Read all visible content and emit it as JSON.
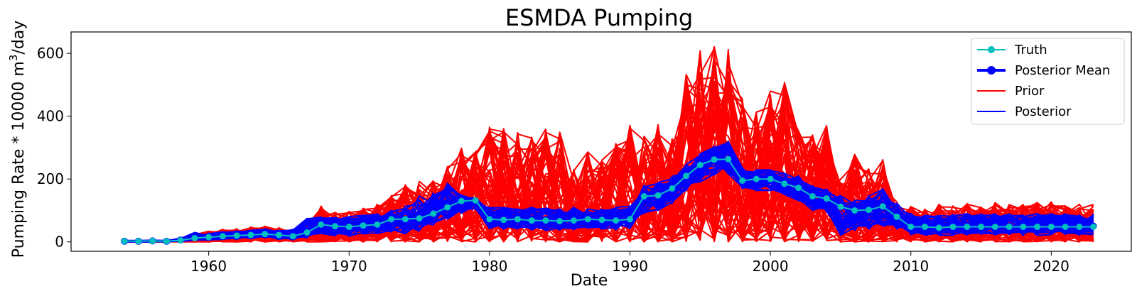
{
  "chart_data": {
    "type": "line",
    "title": "ESMDA Pumping",
    "xlabel": "Date",
    "ylabel_main": "Pumping Rate * 10000 m",
    "ylabel_sup": "3",
    "ylabel_tail": "/day",
    "xlim": [
      1950.2,
      2025.7
    ],
    "ylim": [
      -30,
      668
    ],
    "x_ticks": [
      1960,
      1970,
      1980,
      1990,
      2000,
      2010,
      2020
    ],
    "y_ticks": [
      0,
      200,
      400,
      600
    ],
    "legend_position": "top-right",
    "grid": false,
    "colors": {
      "truth": "#00bfbf",
      "posterior_mean": "#0000ff",
      "prior": "#ff0000",
      "posterior": "#0000ff"
    },
    "legend": [
      "Truth",
      "Posterior Mean",
      "Prior",
      "Posterior"
    ],
    "x": [
      1954,
      1955,
      1956,
      1957,
      1958,
      1959,
      1960,
      1961,
      1962,
      1963,
      1964,
      1965,
      1966,
      1967,
      1968,
      1969,
      1970,
      1971,
      1972,
      1973,
      1974,
      1975,
      1976,
      1977,
      1978,
      1979,
      1980,
      1981,
      1982,
      1983,
      1984,
      1985,
      1986,
      1987,
      1988,
      1989,
      1990,
      1991,
      1992,
      1993,
      1994,
      1995,
      1996,
      1997,
      1998,
      1999,
      2000,
      2001,
      2002,
      2003,
      2004,
      2005,
      2006,
      2007,
      2008,
      2009,
      2010,
      2011,
      2012,
      2013,
      2014,
      2015,
      2016,
      2017,
      2018,
      2019,
      2020,
      2021,
      2022,
      2023
    ],
    "series": [
      {
        "name": "Truth",
        "values": [
          2,
          2,
          3,
          2,
          5,
          12,
          15,
          18,
          20,
          22,
          25,
          22,
          18,
          30,
          55,
          50,
          48,
          52,
          55,
          72,
          72,
          75,
          90,
          110,
          130,
          132,
          72,
          70,
          72,
          68,
          68,
          66,
          68,
          72,
          70,
          68,
          72,
          145,
          148,
          170,
          210,
          245,
          262,
          263,
          195,
          200,
          200,
          185,
          172,
          145,
          138,
          112,
          100,
          102,
          113,
          80,
          48,
          48,
          45,
          48,
          48,
          48,
          48,
          48,
          48,
          48,
          48,
          48,
          48,
          48
        ]
      },
      {
        "name": "Posterior Mean",
        "values": [
          2,
          2,
          3,
          2,
          6,
          14,
          17,
          20,
          22,
          24,
          27,
          24,
          20,
          33,
          58,
          52,
          50,
          55,
          58,
          70,
          72,
          80,
          100,
          118,
          132,
          130,
          80,
          70,
          72,
          68,
          70,
          66,
          68,
          70,
          70,
          68,
          72,
          135,
          150,
          170,
          205,
          240,
          258,
          260,
          210,
          205,
          205,
          192,
          178,
          150,
          138,
          115,
          100,
          105,
          112,
          82,
          52,
          50,
          48,
          50,
          50,
          50,
          50,
          50,
          50,
          50,
          50,
          50,
          50,
          50
        ]
      }
    ],
    "prior_band": {
      "name": "Prior",
      "low": [
        0,
        0,
        0,
        0,
        0,
        0,
        0,
        0,
        0,
        0,
        0,
        0,
        0,
        0,
        0,
        0,
        0,
        0,
        0,
        0,
        0,
        0,
        0,
        0,
        0,
        0,
        0,
        0,
        0,
        0,
        0,
        0,
        0,
        0,
        0,
        0,
        0,
        0,
        0,
        0,
        0,
        0,
        0,
        0,
        0,
        0,
        0,
        0,
        0,
        0,
        0,
        0,
        0,
        0,
        0,
        0,
        0,
        0,
        0,
        0,
        0,
        0,
        0,
        0,
        0,
        0,
        0,
        0,
        0,
        0
      ],
      "high": [
        2,
        3,
        4,
        4,
        10,
        25,
        35,
        40,
        45,
        48,
        50,
        45,
        35,
        70,
        115,
        95,
        98,
        110,
        120,
        150,
        185,
        195,
        195,
        240,
        300,
        290,
        375,
        380,
        360,
        335,
        360,
        360,
        230,
        300,
        270,
        320,
        385,
        345,
        380,
        330,
        550,
        610,
        640,
        615,
        455,
        420,
        480,
        510,
        355,
        340,
        375,
        200,
        300,
        240,
        270,
        130,
        115,
        110,
        120,
        115,
        125,
        115,
        125,
        120,
        120,
        125,
        130,
        115,
        120,
        125
      ]
    },
    "posterior_band": {
      "name": "Posterior",
      "low": [
        0,
        0,
        0,
        0,
        1,
        5,
        5,
        8,
        8,
        10,
        12,
        8,
        6,
        12,
        25,
        20,
        18,
        22,
        25,
        30,
        25,
        35,
        50,
        70,
        90,
        100,
        40,
        40,
        40,
        35,
        35,
        35,
        38,
        40,
        40,
        38,
        42,
        90,
        100,
        120,
        160,
        190,
        210,
        215,
        170,
        160,
        160,
        150,
        130,
        100,
        95,
        20,
        35,
        40,
        50,
        40,
        20,
        20,
        20,
        20,
        22,
        22,
        22,
        20,
        20,
        20,
        22,
        22,
        20,
        20
      ],
      "high": [
        4,
        4,
        5,
        4,
        12,
        30,
        28,
        32,
        35,
        38,
        42,
        38,
        40,
        75,
        80,
        78,
        80,
        85,
        90,
        100,
        115,
        150,
        160,
        190,
        150,
        140,
        110,
        110,
        108,
        110,
        110,
        108,
        112,
        110,
        108,
        110,
        115,
        180,
        190,
        210,
        260,
        285,
        305,
        320,
        240,
        230,
        230,
        220,
        210,
        180,
        170,
        150,
        140,
        150,
        170,
        125,
        90,
        85,
        85,
        88,
        90,
        90,
        90,
        90,
        90,
        90,
        90,
        90,
        90,
        90
      ]
    }
  }
}
